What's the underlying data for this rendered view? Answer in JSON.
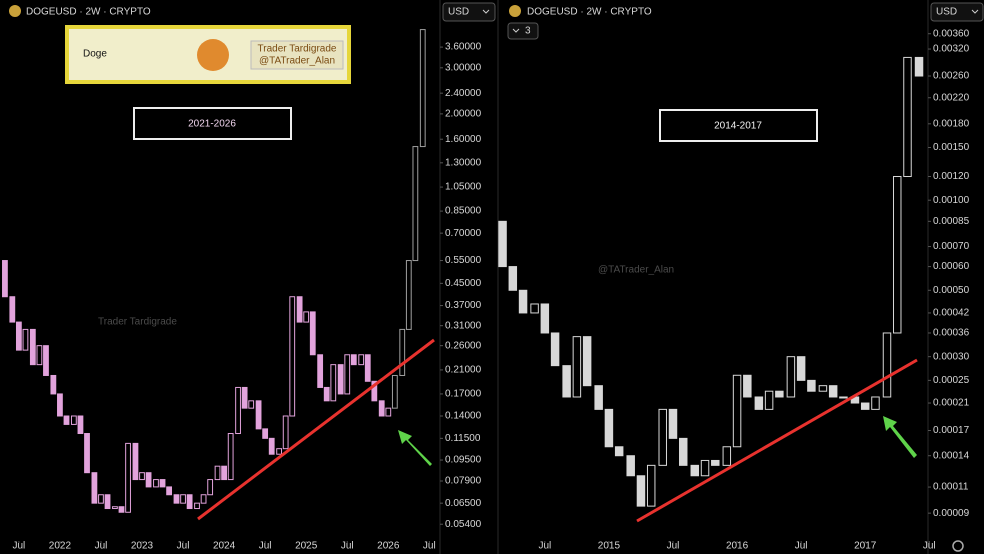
{
  "chart_data": [
    {
      "type": "candlestick",
      "symbol": "DOGEUSD · 2W · CRYPTO",
      "currency": "USD",
      "title": "2021-2026",
      "watermark": "Trader Tardigrade",
      "logo": {
        "name": "Doge",
        "author": "Trader Tardigrade",
        "handle": "@TATrader_Alan"
      },
      "log": true,
      "xlim": [
        2021.27,
        2026.63
      ],
      "ylim": [
        0.047,
        4.49
      ],
      "xticks": [
        {
          "value": 2021.5,
          "label": "Jul"
        },
        {
          "value": 2022,
          "label": "2022"
        },
        {
          "value": 2022.5,
          "label": "Jul"
        },
        {
          "value": 2023,
          "label": "2023"
        },
        {
          "value": 2023.5,
          "label": "Jul"
        },
        {
          "value": 2024,
          "label": "2024"
        },
        {
          "value": 2024.5,
          "label": "Jul"
        },
        {
          "value": 2025,
          "label": "2025"
        },
        {
          "value": 2025.5,
          "label": "Jul"
        },
        {
          "value": 2026,
          "label": "2026"
        },
        {
          "value": 2026.5,
          "label": "Jul"
        }
      ],
      "yticks": [
        {
          "value": 3.6,
          "label": "3.60000"
        },
        {
          "value": 3,
          "label": "3.00000"
        },
        {
          "value": 2.4,
          "label": "2.40000"
        },
        {
          "value": 2,
          "label": "2.00000"
        },
        {
          "value": 1.6,
          "label": "1.60000"
        },
        {
          "value": 1.3,
          "label": "1.30000"
        },
        {
          "value": 1.05,
          "label": "1.05000"
        },
        {
          "value": 0.85,
          "label": "0.85000"
        },
        {
          "value": 0.7,
          "label": "0.70000"
        },
        {
          "value": 0.55,
          "label": "0.55000"
        },
        {
          "value": 0.45,
          "label": "0.45000"
        },
        {
          "value": 0.37,
          "label": "0.37000"
        },
        {
          "value": 0.31,
          "label": "0.31000"
        },
        {
          "value": 0.26,
          "label": "0.26000"
        },
        {
          "value": 0.21,
          "label": "0.21000"
        },
        {
          "value": 0.17,
          "label": "0.17000"
        },
        {
          "value": 0.14,
          "label": "0.14000"
        },
        {
          "value": 0.115,
          "label": "0.11500"
        },
        {
          "value": 0.095,
          "label": "0.09500"
        },
        {
          "value": 0.079,
          "label": "0.07900"
        },
        {
          "value": 0.065,
          "label": "0.06500"
        },
        {
          "value": 0.054,
          "label": "0.05400"
        }
      ],
      "series": [
        {
          "color": "#e2a3dc",
          "x": [
            2021.33,
            2021.42,
            2021.5,
            2021.58,
            2021.67,
            2021.75,
            2021.83,
            2021.92,
            2022,
            2022.08,
            2022.17,
            2022.25,
            2022.33,
            2022.42,
            2022.5,
            2022.58,
            2022.67,
            2022.75,
            2022.83,
            2022.92,
            2023,
            2023.08,
            2023.17,
            2023.25,
            2023.33,
            2023.42,
            2023.5,
            2023.58,
            2023.67,
            2023.75,
            2023.83,
            2023.92,
            2024,
            2024.08,
            2024.17,
            2024.25,
            2024.33,
            2024.42,
            2024.5,
            2024.58,
            2024.67,
            2024.75,
            2024.83,
            2024.92,
            2025,
            2025.08,
            2025.17,
            2025.25,
            2025.33,
            2025.42,
            2025.5,
            2025.58,
            2025.67,
            2025.75,
            2025.83,
            2025.92,
            2026
          ],
          "open": [
            0.55,
            0.4,
            0.32,
            0.25,
            0.3,
            0.22,
            0.26,
            0.2,
            0.17,
            0.14,
            0.13,
            0.14,
            0.12,
            0.085,
            0.065,
            0.07,
            0.062,
            0.063,
            0.06,
            0.11,
            0.08,
            0.085,
            0.075,
            0.08,
            0.075,
            0.07,
            0.065,
            0.07,
            0.062,
            0.065,
            0.07,
            0.08,
            0.09,
            0.08,
            0.12,
            0.18,
            0.15,
            0.16,
            0.125,
            0.115,
            0.1,
            0.105,
            0.14,
            0.4,
            0.32,
            0.35,
            0.24,
            0.18,
            0.16,
            0.22,
            0.17,
            0.24,
            0.22,
            0.24,
            0.19,
            0.16,
            0.14
          ],
          "close": [
            0.4,
            0.32,
            0.25,
            0.3,
            0.22,
            0.26,
            0.2,
            0.17,
            0.14,
            0.13,
            0.14,
            0.12,
            0.085,
            0.065,
            0.07,
            0.062,
            0.063,
            0.06,
            0.11,
            0.08,
            0.085,
            0.075,
            0.08,
            0.075,
            0.07,
            0.065,
            0.07,
            0.062,
            0.065,
            0.07,
            0.08,
            0.09,
            0.08,
            0.12,
            0.18,
            0.15,
            0.16,
            0.125,
            0.115,
            0.1,
            0.105,
            0.14,
            0.4,
            0.32,
            0.35,
            0.24,
            0.18,
            0.16,
            0.22,
            0.17,
            0.24,
            0.22,
            0.24,
            0.19,
            0.16,
            0.14,
            0.15
          ]
        },
        {
          "color": "#a0a0a0",
          "x": [
            2026.08,
            2026.17,
            2026.25,
            2026.33,
            2026.42
          ],
          "open": [
            0.15,
            0.2,
            0.3,
            0.55,
            1.5
          ],
          "close": [
            0.2,
            0.3,
            0.55,
            1.5,
            4.2
          ]
        }
      ]
    },
    {
      "type": "candlestick",
      "symbol": "DOGEUSD · 2W · CRYPTO",
      "currency": "USD",
      "title": "2014-2017",
      "watermark": "@TATrader_Alan",
      "badge": "3",
      "log": true,
      "xlim": [
        2014.15,
        2017.49
      ],
      "ylim": [
        7.32e-05,
        0.00394
      ],
      "xticks": [
        {
          "value": 2014.5,
          "label": "Jul"
        },
        2015,
        {
          "value": 2015.5,
          "label": "Jul"
        },
        2016,
        {
          "value": 2016.5,
          "label": "Jul"
        },
        2017,
        {
          "value": 2017.5,
          "label": "Jul"
        }
      ],
      "yticks": [
        {
          "value": 0.0036,
          "label": "0.00360"
        },
        {
          "value": 0.0032,
          "label": "0.00320"
        },
        {
          "value": 0.0026,
          "label": "0.00260"
        },
        {
          "value": 0.0022,
          "label": "0.00220"
        },
        {
          "value": 0.0018,
          "label": "0.00180"
        },
        {
          "value": 0.0015,
          "label": "0.00150"
        },
        {
          "value": 0.0012,
          "label": "0.00120"
        },
        {
          "value": 0.001,
          "label": "0.00100"
        },
        {
          "value": 0.00085,
          "label": "0.00085"
        },
        {
          "value": 0.0007,
          "label": "0.00070"
        },
        {
          "value": 0.0006,
          "label": "0.00060"
        },
        {
          "value": 0.0005,
          "label": "0.00050"
        },
        {
          "value": 0.00042,
          "label": "0.00042"
        },
        {
          "value": 0.00036,
          "label": "0.00036"
        },
        {
          "value": 0.0003,
          "label": "0.00030"
        },
        {
          "value": 0.00025,
          "label": "0.00025"
        },
        {
          "value": 0.00021,
          "label": "0.00021"
        },
        {
          "value": 0.00017,
          "label": "0.00017"
        },
        {
          "value": 0.00014,
          "label": "0.00014"
        },
        {
          "value": 0.00011,
          "label": "0.00011"
        },
        {
          "value": 9e-05,
          "label": "0.00009"
        }
      ],
      "series": [
        {
          "color": "#d8d8d8",
          "x": [
            2014.17,
            2014.25,
            2014.33,
            2014.42,
            2014.5,
            2014.58,
            2014.67,
            2014.75,
            2014.83,
            2014.92,
            2015,
            2015.08,
            2015.17,
            2015.25,
            2015.33,
            2015.42,
            2015.5,
            2015.58,
            2015.67,
            2015.75,
            2015.83,
            2015.92,
            2016,
            2016.08,
            2016.17,
            2016.25,
            2016.33,
            2016.42,
            2016.5,
            2016.58,
            2016.67,
            2016.75,
            2016.83,
            2016.92,
            2017,
            2017.08,
            2017.17,
            2017.25,
            2017.33,
            2017.42
          ],
          "open": [
            0.00085,
            0.0006,
            0.0005,
            0.00042,
            0.00045,
            0.00036,
            0.00028,
            0.00022,
            0.00035,
            0.00024,
            0.0002,
            0.00015,
            0.00014,
            0.00012,
            9.5e-05,
            0.00013,
            0.0002,
            0.00016,
            0.00013,
            0.00012,
            0.000135,
            0.00013,
            0.00015,
            0.00026,
            0.00022,
            0.0002,
            0.00023,
            0.00022,
            0.0003,
            0.00025,
            0.00023,
            0.00024,
            0.00022,
            0.00022,
            0.00021,
            0.0002,
            0.00022,
            0.00036,
            0.0012,
            0.003
          ],
          "close": [
            0.0006,
            0.0005,
            0.00042,
            0.00045,
            0.00036,
            0.00028,
            0.00022,
            0.00035,
            0.00024,
            0.0002,
            0.00015,
            0.00014,
            0.00012,
            9.5e-05,
            0.00013,
            0.0002,
            0.00016,
            0.00013,
            0.00012,
            0.000135,
            0.00013,
            0.00015,
            0.00026,
            0.00022,
            0.0002,
            0.00023,
            0.00022,
            0.0003,
            0.00025,
            0.00023,
            0.00024,
            0.00022,
            0.00022,
            0.00021,
            0.0002,
            0.00022,
            0.00036,
            0.0012,
            0.003,
            0.0026
          ]
        }
      ]
    }
  ]
}
